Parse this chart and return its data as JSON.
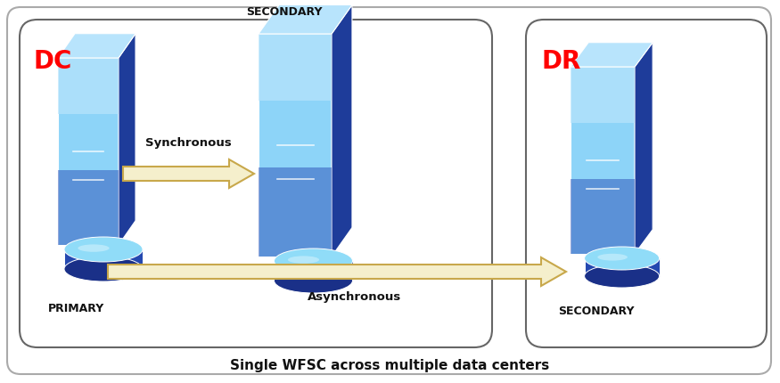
{
  "fig_width": 8.75,
  "fig_height": 4.3,
  "bg_color": "#ffffff",
  "dc_label": "DC",
  "dr_label": "DR",
  "label_color": "#ff0000",
  "primary_label": "PRIMARY",
  "secondary_dc_label": "SECONDARY",
  "secondary_dr_label": "SECONDARY",
  "sync_label": "Synchronous",
  "async_label": "Asynchronous",
  "footer_text": "Single WFSC across multiple data centers",
  "arrow_fill": "#f5efcc",
  "arrow_edge": "#c8a84b",
  "c_front_light": "#7ec8f0",
  "c_front_mid": "#4a8fd4",
  "c_front_dark": "#2a55a8",
  "c_right": "#2a4fa0",
  "c_top": "#a8dcf8",
  "c_disk_top": "#7ad4f4",
  "c_disk_side": "#2a52b0",
  "c_disk_dark": "#1a3088"
}
